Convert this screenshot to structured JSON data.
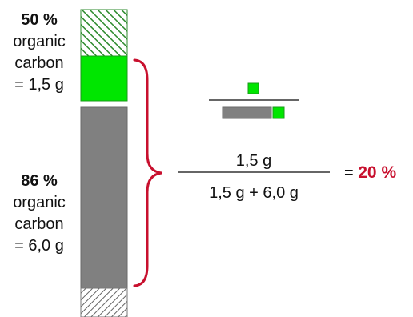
{
  "top_label": {
    "percent": "50 %",
    "line1": "organic",
    "line2": "carbon",
    "line3": "= 1,5 g"
  },
  "bottom_label": {
    "percent": "86 %",
    "line1": "organic",
    "line2": "carbon",
    "line3": "= 6,0 g"
  },
  "formula": {
    "numerator": "1,5 g",
    "denominator": "1,5 g + 6,0 g",
    "equals": "=",
    "result": "20 %"
  },
  "colors": {
    "green": "#00e600",
    "gray": "#808080",
    "red": "#c8102e",
    "hatch_green": "#2e8b2e",
    "hatch_gray": "#666666"
  }
}
